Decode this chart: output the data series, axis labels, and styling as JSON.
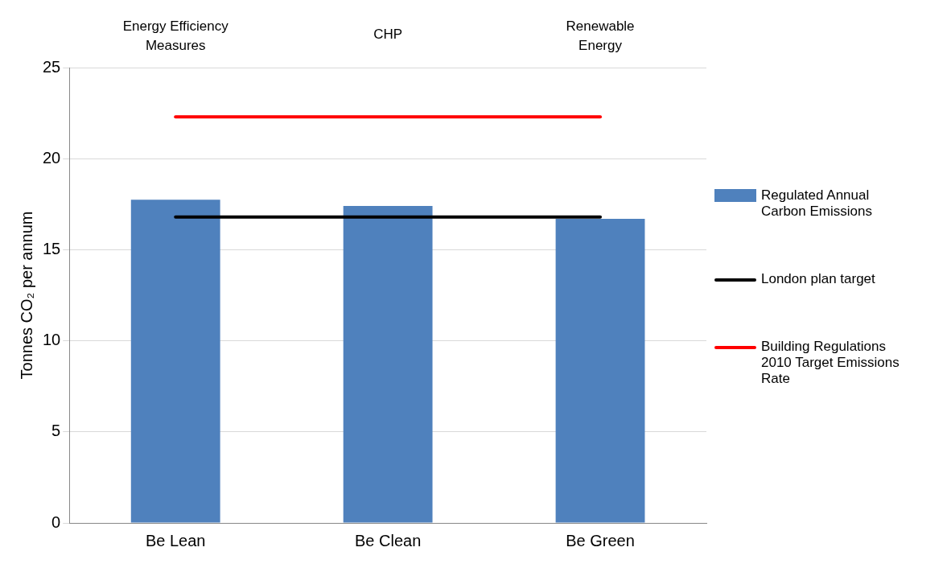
{
  "chart_data": {
    "type": "bar",
    "ylabel": "Tonnes CO₂ per annum",
    "categories": [
      "Be Lean",
      "Be Clean",
      "Be Green"
    ],
    "series": [
      {
        "name": "Regulated Annual Carbon Emissions",
        "color": "#4f81bd",
        "values": [
          17.75,
          17.4,
          16.7
        ]
      },
      {
        "name": "London plan target",
        "type": "line",
        "color": "#000000",
        "values": [
          16.8,
          16.8,
          16.8
        ]
      },
      {
        "name": "Building Regulations 2010 Target Emissions Rate",
        "type": "line",
        "color": "#ff0000",
        "values": [
          22.3,
          22.3,
          22.3
        ]
      }
    ],
    "annotations": [
      "Energy Efficiency Measures",
      "CHP",
      "Renewable Energy"
    ],
    "ylim": [
      0,
      25
    ],
    "yticks": [
      0,
      5,
      10,
      15,
      20,
      25
    ],
    "grid": "y",
    "legend": "right",
    "marker": "none"
  }
}
